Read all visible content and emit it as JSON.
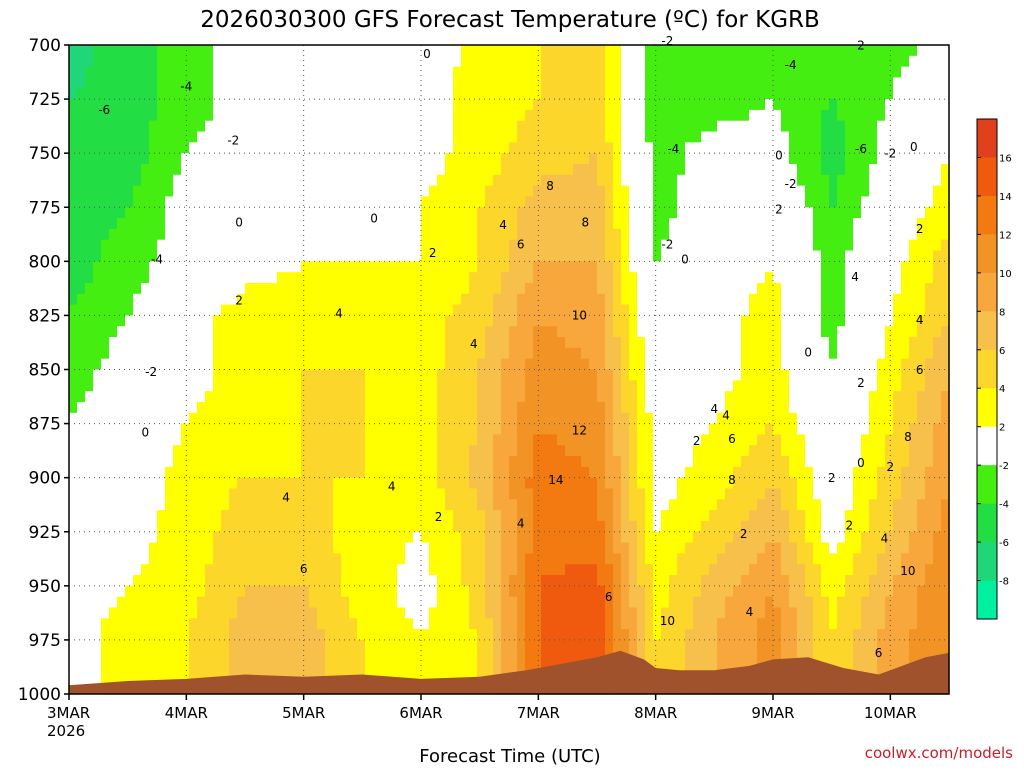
{
  "chart_data": {
    "type": "heatmap",
    "title": "2026030300 GFS Forecast Temperature (ºC) for KGRB",
    "xlabel": "Forecast Time (UTC)",
    "ylabel": "",
    "credit": "coolwx.com/models",
    "y_ticks": [
      "700",
      "725",
      "750",
      "775",
      "800",
      "825",
      "850",
      "875",
      "900",
      "925",
      "950",
      "975",
      "1000"
    ],
    "ylim": [
      1000,
      700
    ],
    "x_ticks": [
      {
        "label": "3MAR",
        "sublabel": "2026",
        "day": 0
      },
      {
        "label": "4MAR",
        "sublabel": "",
        "day": 1
      },
      {
        "label": "5MAR",
        "sublabel": "",
        "day": 2
      },
      {
        "label": "6MAR",
        "sublabel": "",
        "day": 3
      },
      {
        "label": "7MAR",
        "sublabel": "",
        "day": 4
      },
      {
        "label": "8MAR",
        "sublabel": "",
        "day": 5
      },
      {
        "label": "9MAR",
        "sublabel": "",
        "day": 6
      },
      {
        "label": "10MAR",
        "sublabel": "",
        "day": 7
      }
    ],
    "xlim_days": [
      0,
      7.5
    ],
    "grid": true,
    "colorbar": {
      "labels": [
        "16",
        "14",
        "12",
        "10",
        "8",
        "6",
        "4",
        "2",
        "-2",
        "-4",
        "-6",
        "-8"
      ],
      "bins": [
        {
          "range": [
            16,
            18
          ],
          "color": "#e0401b"
        },
        {
          "range": [
            14,
            16
          ],
          "color": "#f05a0e"
        },
        {
          "range": [
            12,
            14
          ],
          "color": "#f27a10"
        },
        {
          "range": [
            10,
            12
          ],
          "color": "#f29425"
        },
        {
          "range": [
            8,
            10
          ],
          "color": "#f7a73b"
        },
        {
          "range": [
            6,
            8
          ],
          "color": "#f7c04a"
        },
        {
          "range": [
            4,
            6
          ],
          "color": "#fcd62a"
        },
        {
          "range": [
            2,
            4
          ],
          "color": "#ffff00"
        },
        {
          "range": [
            -2,
            2
          ],
          "color": "#ffffff"
        },
        {
          "range": [
            -4,
            -2
          ],
          "color": "#44ee11"
        },
        {
          "range": [
            -6,
            -4
          ],
          "color": "#22dd44"
        },
        {
          "range": [
            -8,
            -6
          ],
          "color": "#1fd778"
        },
        {
          "range": [
            -10,
            -8
          ],
          "color": "#00f0a0"
        }
      ]
    },
    "terrain_color": "#a0522d",
    "surface_pressure": [
      [
        0.0,
        996
      ],
      [
        0.5,
        994
      ],
      [
        1.0,
        993
      ],
      [
        1.5,
        991
      ],
      [
        2.0,
        992
      ],
      [
        2.5,
        991
      ],
      [
        3.0,
        993
      ],
      [
        3.5,
        992
      ],
      [
        3.9,
        989
      ],
      [
        4.2,
        986
      ],
      [
        4.5,
        983
      ],
      [
        4.7,
        980
      ],
      [
        4.9,
        984
      ],
      [
        5.0,
        988
      ],
      [
        5.2,
        989
      ],
      [
        5.5,
        989
      ],
      [
        5.8,
        987
      ],
      [
        6.0,
        984
      ],
      [
        6.3,
        983
      ],
      [
        6.6,
        988
      ],
      [
        6.9,
        991
      ],
      [
        7.1,
        987
      ],
      [
        7.3,
        983
      ],
      [
        7.5,
        981
      ]
    ],
    "temperature_grid": {
      "days": [
        0.0,
        0.5,
        1.0,
        1.5,
        2.0,
        2.5,
        3.0,
        3.5,
        4.0,
        4.5,
        5.0,
        5.5,
        6.0,
        6.5,
        7.0,
        7.5
      ],
      "pressure": [
        700,
        725,
        750,
        775,
        800,
        825,
        850,
        875,
        900,
        925,
        950,
        975
      ],
      "values": [
        [
          -7,
          -5,
          -3,
          -1,
          0,
          1,
          0,
          3,
          4,
          5,
          -3,
          -3,
          -3,
          -4,
          -3,
          -1
        ],
        [
          -6,
          -5,
          -3,
          -1,
          0,
          1,
          1,
          3,
          4,
          5,
          -3,
          -3,
          -2,
          -4,
          -2,
          1
        ],
        [
          -6,
          -5,
          -2,
          -1,
          0,
          1,
          1,
          3,
          5,
          6,
          -3,
          -1,
          -1,
          -5,
          -1,
          2
        ],
        [
          -5,
          -4,
          -1,
          0,
          1,
          1,
          2,
          4,
          7,
          7,
          -3,
          0,
          1,
          -4,
          0,
          3
        ],
        [
          -5,
          -3,
          -1,
          1,
          2,
          2,
          2,
          4,
          8,
          8,
          -2,
          0,
          2,
          -3,
          1,
          5
        ],
        [
          -4,
          -2,
          1,
          3,
          3,
          3,
          3,
          5,
          10,
          9,
          -1,
          1,
          3,
          -3,
          2,
          6
        ],
        [
          -3,
          -1,
          1,
          3,
          4,
          4,
          3,
          6,
          11,
          10,
          0,
          1,
          3,
          -2,
          3,
          8
        ],
        [
          -2,
          0,
          2,
          3,
          4,
          4,
          3,
          6,
          12,
          11,
          1,
          2,
          4,
          -1,
          4,
          9
        ],
        [
          -1,
          0,
          3,
          4,
          4,
          4,
          3,
          7,
          13,
          12,
          1,
          3,
          6,
          0,
          5,
          10
        ],
        [
          0,
          1,
          3,
          5,
          5,
          3,
          2,
          5,
          13,
          13,
          2,
          5,
          8,
          1,
          6,
          11
        ],
        [
          1,
          2,
          3,
          6,
          6,
          3,
          1,
          5,
          14,
          15,
          3,
          7,
          10,
          3,
          8,
          12
        ],
        [
          1,
          3,
          4,
          7,
          7,
          4,
          2,
          4,
          14,
          16,
          4,
          8,
          11,
          4,
          9,
          12
        ]
      ]
    },
    "contour_labels": [
      {
        "text": "-6",
        "day": 0.3,
        "p": 732
      },
      {
        "text": "-4",
        "day": 1.0,
        "p": 721
      },
      {
        "text": "-2",
        "day": 1.4,
        "p": 746
      },
      {
        "text": "0",
        "day": 1.45,
        "p": 784
      },
      {
        "text": "2",
        "day": 1.45,
        "p": 820
      },
      {
        "text": "-4",
        "day": 0.75,
        "p": 801
      },
      {
        "text": "-2",
        "day": 0.7,
        "p": 853
      },
      {
        "text": "0",
        "day": 0.65,
        "p": 881
      },
      {
        "text": "0",
        "day": 2.6,
        "p": 782
      },
      {
        "text": "2",
        "day": 3.1,
        "p": 798
      },
      {
        "text": "0",
        "day": 3.05,
        "p": 706
      },
      {
        "text": "4",
        "day": 2.3,
        "p": 826
      },
      {
        "text": "4",
        "day": 3.45,
        "p": 840
      },
      {
        "text": "4",
        "day": 1.85,
        "p": 911
      },
      {
        "text": "4",
        "day": 2.75,
        "p": 906
      },
      {
        "text": "2",
        "day": 3.15,
        "p": 920
      },
      {
        "text": "6",
        "day": 2.0,
        "p": 944
      },
      {
        "text": "4",
        "day": 3.7,
        "p": 785
      },
      {
        "text": "6",
        "day": 3.85,
        "p": 794
      },
      {
        "text": "8",
        "day": 4.1,
        "p": 767
      },
      {
        "text": "8",
        "day": 4.4,
        "p": 784
      },
      {
        "text": "10",
        "day": 4.35,
        "p": 827
      },
      {
        "text": "12",
        "day": 4.35,
        "p": 880
      },
      {
        "text": "14",
        "day": 4.15,
        "p": 903
      },
      {
        "text": "4",
        "day": 3.85,
        "p": 923
      },
      {
        "text": "6",
        "day": 4.6,
        "p": 957
      },
      {
        "text": "-2",
        "day": 5.1,
        "p": 700
      },
      {
        "text": "-4",
        "day": 5.15,
        "p": 750
      },
      {
        "text": "-2",
        "day": 5.1,
        "p": 794
      },
      {
        "text": "0",
        "day": 5.25,
        "p": 801
      },
      {
        "text": "2",
        "day": 6.75,
        "p": 702
      },
      {
        "text": "-4",
        "day": 6.15,
        "p": 711
      },
      {
        "text": "-6",
        "day": 6.75,
        "p": 750
      },
      {
        "text": "0",
        "day": 6.05,
        "p": 753
      },
      {
        "text": "-2",
        "day": 6.15,
        "p": 766
      },
      {
        "text": "2",
        "day": 6.05,
        "p": 778
      },
      {
        "text": "-2",
        "day": 7.0,
        "p": 752
      },
      {
        "text": "0",
        "day": 7.2,
        "p": 749
      },
      {
        "text": "2",
        "day": 7.25,
        "p": 787
      },
      {
        "text": "4",
        "day": 6.7,
        "p": 809
      },
      {
        "text": "4",
        "day": 7.25,
        "p": 829
      },
      {
        "text": "0",
        "day": 6.3,
        "p": 844
      },
      {
        "text": "2",
        "day": 6.75,
        "p": 858
      },
      {
        "text": "6",
        "day": 7.25,
        "p": 852
      },
      {
        "text": "4",
        "day": 5.5,
        "p": 870
      },
      {
        "text": "4",
        "day": 5.6,
        "p": 873
      },
      {
        "text": "2",
        "day": 5.35,
        "p": 885
      },
      {
        "text": "6",
        "day": 5.65,
        "p": 884
      },
      {
        "text": "8",
        "day": 5.65,
        "p": 903
      },
      {
        "text": "0",
        "day": 6.75,
        "p": 895
      },
      {
        "text": "2",
        "day": 6.5,
        "p": 902
      },
      {
        "text": "2",
        "day": 7.0,
        "p": 897
      },
      {
        "text": "8",
        "day": 7.15,
        "p": 883
      },
      {
        "text": "2",
        "day": 6.65,
        "p": 924
      },
      {
        "text": "4",
        "day": 6.95,
        "p": 930
      },
      {
        "text": "2",
        "day": 5.75,
        "p": 928
      },
      {
        "text": "4",
        "day": 5.8,
        "p": 964
      },
      {
        "text": "10",
        "day": 5.1,
        "p": 968
      },
      {
        "text": "10",
        "day": 7.15,
        "p": 945
      },
      {
        "text": "6",
        "day": 6.9,
        "p": 983
      }
    ]
  }
}
